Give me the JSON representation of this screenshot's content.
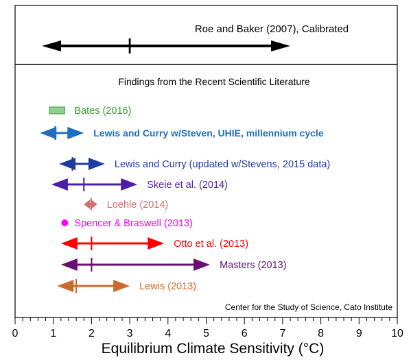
{
  "chart_data": {
    "type": "range",
    "top_panel": {
      "label": "Roe and Baker (2007), Calibrated",
      "low": 0.7,
      "best": 3.0,
      "high": 7.2,
      "color": "#000000"
    },
    "bottom_panel_title": "Findings from the Recent Scientific Literature",
    "series": [
      {
        "name": "Bates (2016)",
        "kind": "box",
        "low": 0.9,
        "high": 1.3,
        "color": "#2e9e2e",
        "fill": "#8fd08f"
      },
      {
        "name": "Lewis and Curry w/Steven, UHIE, millennium cycle",
        "kind": "range",
        "low": 0.65,
        "best": 1.05,
        "high": 1.8,
        "color": "#1e6fc0",
        "bold": true
      },
      {
        "name": "Lewis and Curry (updated w/Stevens, 2015 data)",
        "kind": "range",
        "low": 1.15,
        "best": 1.5,
        "high": 2.35,
        "color": "#1f3c9e"
      },
      {
        "name": "Skeie et al. (2014)",
        "kind": "range",
        "low": 0.95,
        "best": 1.8,
        "high": 3.2,
        "color": "#4b1fa6"
      },
      {
        "name": "Loehle (2014)",
        "kind": "range",
        "low": 1.8,
        "best": 1.99,
        "high": 2.15,
        "color": "#d07070"
      },
      {
        "name": "Spencer & Braswell (2013)",
        "kind": "point",
        "best": 1.3,
        "color": "#ff00ff"
      },
      {
        "name": "Otto et al. (2013)",
        "kind": "range",
        "low": 1.2,
        "best": 2.0,
        "high": 3.9,
        "color": "#ff0000"
      },
      {
        "name": "Masters (2013)",
        "kind": "range",
        "low": 1.2,
        "best": 2.0,
        "high": 5.1,
        "color": "#6a0e75"
      },
      {
        "name": "Lewis (2013)",
        "kind": "range",
        "low": 1.1,
        "best": 1.6,
        "high": 3.0,
        "color": "#cc6a2c"
      }
    ],
    "credit": "Center for the Study of Science, Cato Institute",
    "xlabel": "Equilibrium Climate Sensitivity (°C)",
    "xlim": [
      0,
      10
    ],
    "xticks": [
      "0",
      "1",
      "2",
      "3",
      "4",
      "5",
      "6",
      "7",
      "8",
      "9",
      "10"
    ],
    "grid": false
  }
}
